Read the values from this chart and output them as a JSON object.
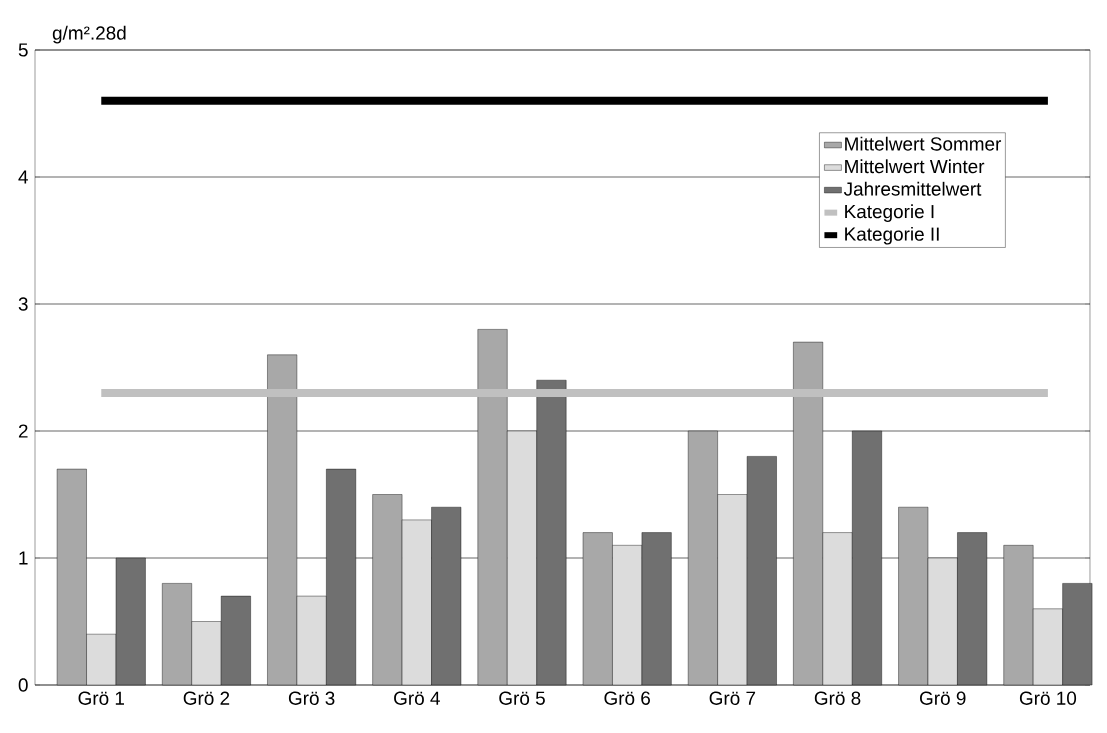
{
  "chart_data": {
    "type": "bar",
    "ylabel": "g/m².28d",
    "categories": [
      "Grö 1",
      "Grö 2",
      "Grö 3",
      "Grö 4",
      "Grö 5",
      "Grö 6",
      "Grö 7",
      "Grö 8",
      "Grö 9",
      "Grö 10"
    ],
    "series": [
      {
        "name": "Mittelwert Sommer",
        "color": "#a8a8a8",
        "values": [
          1.7,
          0.8,
          2.6,
          1.5,
          2.8,
          1.2,
          2.0,
          2.7,
          1.4,
          1.1
        ]
      },
      {
        "name": "Mittelwert Winter",
        "color": "#dcdcdc",
        "values": [
          0.4,
          0.5,
          0.7,
          1.3,
          2.0,
          1.1,
          1.5,
          1.2,
          1.0,
          0.6
        ]
      },
      {
        "name": "Jahresmittelwert",
        "color": "#707070",
        "values": [
          1.0,
          0.7,
          1.7,
          1.4,
          2.4,
          1.2,
          1.8,
          2.0,
          1.2,
          0.8
        ]
      }
    ],
    "ref_lines": [
      {
        "axis": "y",
        "value": 2.3,
        "label": "Kategorie I",
        "color": "#c0c0c0"
      },
      {
        "axis": "y",
        "value": 4.6,
        "label": "Kategorie II",
        "color": "#000000"
      }
    ],
    "ylim": [
      0,
      5
    ],
    "yticks": [
      0,
      1,
      2,
      3,
      4,
      5
    ],
    "grid": "y",
    "legend": "top right"
  }
}
